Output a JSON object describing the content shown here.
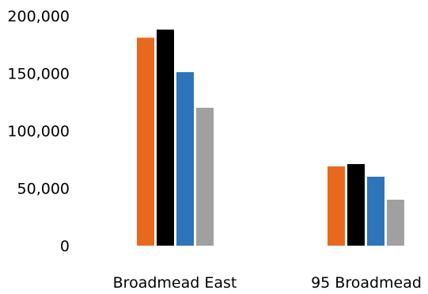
{
  "chart_data": {
    "type": "bar",
    "categories": [
      "Broadmead East",
      "95 Broadmead"
    ],
    "series": [
      {
        "values": [
          181000,
          69000
        ],
        "color": "#e8691e"
      },
      {
        "values": [
          188000,
          71000
        ],
        "color": "#000000"
      },
      {
        "values": [
          151000,
          60000
        ],
        "color": "#2e74bb"
      },
      {
        "values": [
          120000,
          40000
        ],
        "color": "#a0a0a0"
      }
    ],
    "y_ticks": [
      "0",
      "50,000",
      "100,000",
      "150,000",
      "200,000"
    ],
    "y_tick_values": [
      0,
      50000,
      100000,
      150000,
      200000
    ],
    "ylim": [
      0,
      200000
    ],
    "grid": false,
    "legend": "none",
    "title": "",
    "xlabel": "",
    "ylabel": ""
  }
}
